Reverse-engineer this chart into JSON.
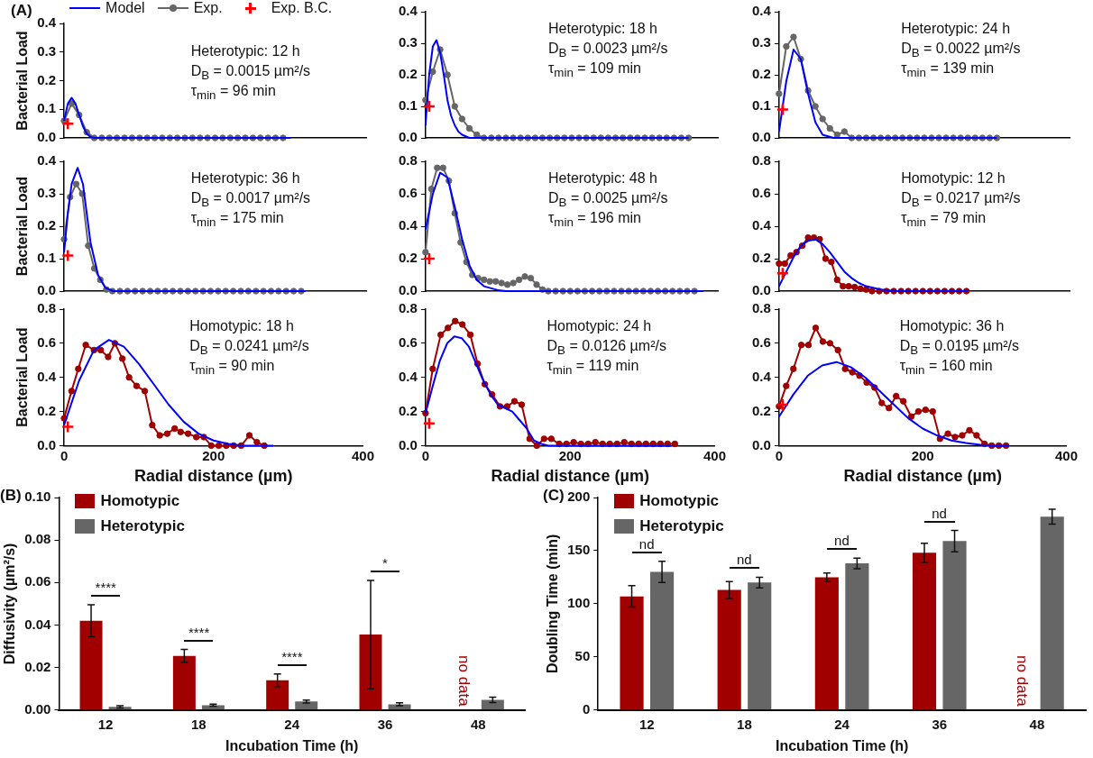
{
  "chart_data": [
    {
      "type": "line",
      "title": "(A)",
      "ylabel": "Bacterial Load",
      "xlim": [
        0,
        400
      ],
      "xticks": [
        0,
        200,
        400
      ],
      "ylim": [
        0,
        0.4
      ],
      "yticks": [
        {
          "value": 0,
          "label": "0.0"
        },
        0.1,
        0.2,
        0.3,
        0.4
      ],
      "tick_labels": "y",
      "legend": "top",
      "annotations": [
        "Heterotypic: 12 h",
        "D$_{B}$ = 0.0015 µm²/s",
        "τ$_{min}$ = 96 min"
      ],
      "series": [
        {
          "name": "Model",
          "color": "#0000ff",
          "marker": "none",
          "x": [
            0,
            5,
            10,
            15,
            20,
            25,
            30,
            35,
            40,
            300
          ],
          "values": [
            0.06,
            0.12,
            0.14,
            0.12,
            0.08,
            0.04,
            0.015,
            0.003,
            0,
            0
          ]
        },
        {
          "name": "Exp.",
          "color": "#666666",
          "marker": "circle",
          "x": [
            0,
            10,
            20,
            30,
            40,
            50,
            60,
            70,
            80,
            90,
            100,
            110,
            120,
            130,
            140,
            150,
            160,
            170,
            180,
            190,
            200,
            210,
            220,
            230,
            240,
            250,
            260,
            270,
            280,
            290
          ],
          "values": [
            0.06,
            0.12,
            0.08,
            0.02,
            0,
            0,
            0,
            0,
            0,
            0,
            0,
            0,
            0,
            0,
            0,
            0,
            0,
            0,
            0,
            0,
            0,
            0,
            0,
            0,
            0,
            0,
            0,
            0,
            0,
            0
          ]
        },
        {
          "name": "Exp. B.C.",
          "type": "scatter",
          "color": "#ff0000",
          "marker": "cross",
          "x": [
            5
          ],
          "values": [
            0.05
          ]
        }
      ]
    },
    {
      "type": "line",
      "xlim": [
        0,
        400
      ],
      "xticks": [
        0,
        200,
        400
      ],
      "ylim": [
        0,
        0.4
      ],
      "yticks": [
        {
          "value": 0,
          "label": "0.0"
        },
        0.1,
        0.2,
        0.3,
        0.4
      ],
      "tick_labels": "y",
      "annotations": [
        "Heterotypic: 18 h",
        "D$_{B}$ = 0.0023 µm²/s",
        "τ$_{min}$ = 109 min"
      ],
      "series": [
        {
          "color": "#0000ff",
          "marker": "none",
          "x": [
            0,
            5,
            10,
            15,
            20,
            25,
            30,
            35,
            40,
            45,
            50,
            60,
            360
          ],
          "values": [
            0.04,
            0.2,
            0.29,
            0.31,
            0.27,
            0.2,
            0.12,
            0.07,
            0.04,
            0.02,
            0.01,
            0,
            0
          ]
        },
        {
          "color": "#666666",
          "marker": "circle",
          "x": [
            0,
            10,
            20,
            30,
            40,
            50,
            60,
            70,
            80,
            90,
            100,
            110,
            120,
            130,
            140,
            150,
            160,
            170,
            180,
            190,
            200,
            210,
            220,
            230,
            240,
            250,
            260,
            270,
            280,
            290,
            300,
            310,
            320,
            330,
            340,
            350,
            360
          ],
          "values": [
            0.12,
            0.21,
            0.28,
            0.2,
            0.1,
            0.06,
            0.03,
            0.01,
            0,
            0,
            0,
            0,
            0,
            0,
            0,
            0,
            0,
            0,
            0,
            0,
            0,
            0,
            0,
            0,
            0,
            0,
            0,
            0,
            0,
            0,
            0,
            0,
            0,
            0,
            0,
            0,
            0
          ]
        },
        {
          "type": "scatter",
          "color": "#ff0000",
          "marker": "cross",
          "x": [
            5
          ],
          "values": [
            0.1
          ]
        }
      ]
    },
    {
      "type": "line",
      "xlim": [
        0,
        400
      ],
      "xticks": [
        0,
        200,
        400
      ],
      "ylim": [
        0,
        0.4
      ],
      "yticks": [
        {
          "value": 0,
          "label": "0.0"
        },
        0.1,
        0.2,
        0.3,
        0.4
      ],
      "tick_labels": "y",
      "annotations": [
        "Heterotypic: 24 h",
        "D$_{B}$ = 0.0022 µm²/s",
        "τ$_{min}$ = 139 min"
      ],
      "series": [
        {
          "color": "#0000ff",
          "marker": "none",
          "x": [
            0,
            10,
            20,
            30,
            40,
            50,
            60,
            75,
            300
          ],
          "values": [
            0.02,
            0.18,
            0.28,
            0.25,
            0.14,
            0.05,
            0.01,
            0,
            0
          ]
        },
        {
          "color": "#666666",
          "marker": "circle",
          "x": [
            0,
            10,
            20,
            30,
            40,
            50,
            60,
            70,
            80,
            90,
            100,
            110,
            120,
            130,
            140,
            150,
            160,
            170,
            180,
            190,
            200,
            210,
            220,
            230,
            240,
            250,
            260,
            270,
            280,
            290,
            300
          ],
          "values": [
            0.14,
            0.29,
            0.32,
            0.25,
            0.15,
            0.1,
            0.06,
            0.03,
            0.01,
            0.02,
            0,
            0,
            0,
            0,
            0,
            0,
            0,
            0,
            0,
            0,
            0,
            0,
            0,
            0,
            0,
            0,
            0,
            0,
            0,
            0,
            0
          ]
        },
        {
          "type": "scatter",
          "color": "#ff0000",
          "marker": "cross",
          "x": [
            5
          ],
          "values": [
            0.09
          ]
        }
      ]
    },
    {
      "type": "line",
      "ylabel": "Bacterial Load",
      "xlim": [
        0,
        400
      ],
      "xticks": [
        0,
        200,
        400
      ],
      "ylim": [
        0,
        0.4
      ],
      "yticks": [
        {
          "value": 0,
          "label": "0.0"
        },
        0.1,
        0.2,
        0.3,
        0.4
      ],
      "tick_labels": "y",
      "annotations": [
        "Heterotypic: 36 h",
        "D$_{B}$ = 0.0017 µm²/s",
        "τ$_{min}$ = 175 min"
      ],
      "series": [
        {
          "color": "#0000ff",
          "marker": "none",
          "x": [
            0,
            5,
            10,
            18,
            25,
            30,
            35,
            45,
            55,
            65,
            320
          ],
          "values": [
            0.12,
            0.24,
            0.33,
            0.38,
            0.33,
            0.24,
            0.15,
            0.05,
            0.01,
            0,
            0
          ]
        },
        {
          "color": "#666666",
          "marker": "circle",
          "x": [
            0,
            8,
            16,
            24,
            32,
            40,
            48,
            56,
            64,
            74,
            84,
            94,
            104,
            114,
            124,
            134,
            144,
            154,
            164,
            174,
            184,
            194,
            204,
            214,
            224,
            234,
            244,
            254,
            264,
            274,
            284,
            294,
            304,
            314
          ],
          "values": [
            0.16,
            0.29,
            0.33,
            0.3,
            0.14,
            0.07,
            0.035,
            0.005,
            0,
            0,
            0,
            0,
            0,
            0,
            0,
            0,
            0,
            0,
            0,
            0,
            0,
            0,
            0,
            0,
            0,
            0,
            0,
            0,
            0,
            0,
            0,
            0,
            0,
            0
          ]
        },
        {
          "type": "scatter",
          "color": "#ff0000",
          "marker": "cross",
          "x": [
            5
          ],
          "values": [
            0.11
          ]
        }
      ]
    },
    {
      "type": "line",
      "xlim": [
        0,
        400
      ],
      "xticks": [
        0,
        200,
        400
      ],
      "ylim": [
        0,
        0.8
      ],
      "yticks": [
        {
          "value": 0,
          "label": "0.0"
        },
        0.2,
        0.4,
        0.6,
        0.8
      ],
      "tick_labels": "y",
      "annotations": [
        "Heterotypic: 48 h",
        "D$_{B}$ = 0.0025 µm²/s",
        "τ$_{min}$ = 196 min"
      ],
      "series": [
        {
          "color": "#0000ff",
          "marker": "none",
          "x": [
            0,
            10,
            20,
            30,
            40,
            50,
            60,
            70,
            80,
            100,
            110,
            380
          ],
          "values": [
            0.38,
            0.6,
            0.73,
            0.7,
            0.52,
            0.32,
            0.16,
            0.07,
            0.03,
            0.005,
            0,
            0
          ]
        },
        {
          "color": "#666666",
          "marker": "circle",
          "x": [
            0,
            8,
            16,
            24,
            32,
            40,
            48,
            56,
            64,
            72,
            80,
            88,
            96,
            104,
            112,
            120,
            128,
            136,
            144,
            152,
            160,
            168,
            178,
            188,
            198,
            208,
            218,
            228,
            238,
            248,
            258,
            268,
            278,
            288,
            298,
            308,
            318,
            328,
            338,
            348,
            358,
            368
          ],
          "values": [
            0.24,
            0.63,
            0.76,
            0.76,
            0.68,
            0.48,
            0.3,
            0.18,
            0.1,
            0.08,
            0.07,
            0.06,
            0.06,
            0.05,
            0.04,
            0.05,
            0.07,
            0.09,
            0.08,
            0.04,
            0.01,
            0,
            0,
            0,
            0,
            0,
            0,
            0,
            0,
            0,
            0,
            0,
            0,
            0,
            0,
            0,
            0,
            0,
            0,
            0,
            0,
            0
          ]
        },
        {
          "type": "scatter",
          "color": "#ff0000",
          "marker": "cross",
          "x": [
            5
          ],
          "values": [
            0.2
          ]
        }
      ]
    },
    {
      "type": "line",
      "xlim": [
        0,
        400
      ],
      "xticks": [
        0,
        200,
        400
      ],
      "ylim": [
        0,
        0.8
      ],
      "yticks": [
        {
          "value": 0,
          "label": "0.0"
        },
        0.2,
        0.4,
        0.6,
        0.8
      ],
      "tick_labels": "y",
      "annotations": [
        "Homotypic: 12 h",
        "D$_{B}$ = 0.0217 µm²/s",
        "τ$_{min}$ = 79 min"
      ],
      "series": [
        {
          "color": "#0000ff",
          "marker": "none",
          "x": [
            0,
            10,
            20,
            30,
            40,
            50,
            60,
            70,
            80,
            90,
            100,
            110,
            120,
            140,
            160,
            260
          ],
          "values": [
            0.03,
            0.12,
            0.21,
            0.28,
            0.31,
            0.32,
            0.29,
            0.24,
            0.18,
            0.12,
            0.08,
            0.05,
            0.03,
            0.01,
            0,
            0
          ]
        },
        {
          "color": "#a00000",
          "marker": "circle",
          "x": [
            0,
            8,
            16,
            24,
            32,
            40,
            48,
            56,
            64,
            72,
            80,
            88,
            96,
            104,
            112,
            120,
            128,
            138,
            148,
            158,
            168,
            178,
            188,
            198,
            208,
            218,
            228,
            238,
            248,
            258
          ],
          "values": [
            0.17,
            0.17,
            0.22,
            0.24,
            0.28,
            0.33,
            0.33,
            0.32,
            0.2,
            0.18,
            0.07,
            0.03,
            0.03,
            0.025,
            0.015,
            0.01,
            0,
            0,
            0,
            0,
            0,
            0,
            0,
            0,
            0,
            0,
            0,
            0,
            0,
            0
          ]
        },
        {
          "type": "scatter",
          "color": "#ff0000",
          "marker": "cross",
          "x": [
            5
          ],
          "values": [
            0.11
          ]
        }
      ]
    },
    {
      "type": "line",
      "ylabel": "Bacterial Load",
      "xlabel": "Radial distance (µm)",
      "xlim": [
        0,
        400
      ],
      "xticks": [
        0,
        200,
        400
      ],
      "ylim": [
        0,
        0.8
      ],
      "yticks": [
        {
          "value": 0,
          "label": "0.0"
        },
        0.2,
        0.4,
        0.6,
        0.8
      ],
      "annotations": [
        "Homotypic: 18 h",
        "D$_{B}$ = 0.0241 µm²/s",
        "τ$_{min}$ = 90 min"
      ],
      "series": [
        {
          "color": "#0000ff",
          "marker": "none",
          "x": [
            0,
            20,
            40,
            60,
            80,
            100,
            120,
            140,
            160,
            180,
            200,
            220,
            240,
            280
          ],
          "values": [
            0.12,
            0.38,
            0.56,
            0.62,
            0.58,
            0.48,
            0.36,
            0.24,
            0.14,
            0.07,
            0.03,
            0.01,
            0,
            0
          ]
        },
        {
          "color": "#a00000",
          "marker": "circle",
          "x": [
            0,
            10,
            19,
            29,
            40,
            49,
            59,
            68,
            78,
            87,
            97,
            108,
            118,
            128,
            138,
            148,
            156,
            166,
            177,
            187,
            197,
            207,
            217,
            227,
            237,
            248,
            258,
            268
          ],
          "values": [
            0.16,
            0.32,
            0.45,
            0.59,
            0.56,
            0.56,
            0.52,
            0.6,
            0.51,
            0.4,
            0.35,
            0.32,
            0.12,
            0.06,
            0.07,
            0.1,
            0.08,
            0.07,
            0.05,
            0.05,
            0,
            0,
            0,
            0,
            0,
            0.06,
            0.02,
            0
          ]
        },
        {
          "type": "scatter",
          "color": "#ff0000",
          "marker": "cross",
          "x": [
            5
          ],
          "values": [
            0.11
          ]
        }
      ]
    },
    {
      "type": "line",
      "xlabel": "Radial distance (µm)",
      "xlim": [
        0,
        400
      ],
      "xticks": [
        0,
        200,
        400
      ],
      "ylim": [
        0,
        0.8
      ],
      "yticks": [
        {
          "value": 0,
          "label": "0.0"
        },
        0.2,
        0.4,
        0.6,
        0.8
      ],
      "annotations": [
        "Homotypic: 24 h",
        "D$_{B}$ = 0.0126 µm²/s",
        "τ$_{min}$ = 119 min"
      ],
      "series": [
        {
          "color": "#0000ff",
          "marker": "none",
          "x": [
            0,
            10,
            20,
            30,
            40,
            50,
            60,
            70,
            80,
            90,
            100,
            110,
            120,
            130,
            140,
            150,
            160,
            170,
            340
          ],
          "values": [
            0.19,
            0.35,
            0.5,
            0.6,
            0.64,
            0.63,
            0.58,
            0.48,
            0.38,
            0.3,
            0.24,
            0.22,
            0.2,
            0.15,
            0.1,
            0.03,
            0.01,
            0,
            0
          ]
        },
        {
          "color": "#a00000",
          "marker": "circle",
          "x": [
            0,
            10,
            21,
            31,
            41,
            51,
            62,
            72,
            82,
            92,
            103,
            113,
            123,
            133,
            144,
            154,
            164,
            174,
            185,
            195,
            205,
            215,
            225,
            235,
            245,
            255,
            265,
            275,
            285,
            295,
            305,
            315,
            325,
            335,
            345
          ],
          "values": [
            0.19,
            0.45,
            0.65,
            0.69,
            0.73,
            0.71,
            0.65,
            0.48,
            0.36,
            0.3,
            0.23,
            0.23,
            0.26,
            0.24,
            0.04,
            0,
            0.04,
            0.04,
            0.01,
            0.01,
            0.02,
            0.01,
            0.01,
            0.02,
            0.01,
            0.01,
            0.01,
            0.02,
            0.01,
            0.01,
            0.01,
            0.01,
            0.01,
            0.01,
            0.01
          ]
        },
        {
          "type": "scatter",
          "color": "#ff0000",
          "marker": "cross",
          "x": [
            5
          ],
          "values": [
            0.13
          ]
        }
      ]
    },
    {
      "type": "line",
      "xlabel": "Radial distance (µm)",
      "xlim": [
        0,
        400
      ],
      "xticks": [
        0,
        200,
        400
      ],
      "ylim": [
        0,
        0.8
      ],
      "yticks": [
        {
          "value": 0,
          "label": "0.0"
        },
        0.2,
        0.4,
        0.6,
        0.8
      ],
      "annotations": [
        "Homotypic: 36 h",
        "D$_{B}$ = 0.0195 µm²/s",
        "τ$_{min}$ = 160 min"
      ],
      "series": [
        {
          "color": "#0000ff",
          "marker": "none",
          "x": [
            0,
            20,
            40,
            60,
            80,
            100,
            120,
            140,
            160,
            180,
            200,
            220,
            240,
            260,
            280,
            300,
            320
          ],
          "values": [
            0.17,
            0.3,
            0.41,
            0.47,
            0.49,
            0.46,
            0.4,
            0.32,
            0.24,
            0.16,
            0.1,
            0.06,
            0.03,
            0.015,
            0.005,
            0,
            0
          ]
        },
        {
          "color": "#a00000",
          "marker": "circle",
          "x": [
            0,
            10,
            20,
            31,
            41,
            51,
            61,
            71,
            82,
            92,
            102,
            112,
            122,
            133,
            143,
            153,
            163,
            173,
            184,
            194,
            204,
            214,
            224,
            235,
            245,
            255,
            265,
            275,
            286,
            296,
            306,
            316
          ],
          "values": [
            0.23,
            0.35,
            0.45,
            0.59,
            0.59,
            0.69,
            0.61,
            0.6,
            0.56,
            0.45,
            0.43,
            0.41,
            0.37,
            0.34,
            0.25,
            0.22,
            0.29,
            0.26,
            0.17,
            0.2,
            0.21,
            0.2,
            0.04,
            0.07,
            0.05,
            0.06,
            0.09,
            0.06,
            0.01,
            0,
            0,
            0
          ]
        },
        {
          "type": "scatter",
          "color": "#ff0000",
          "marker": "cross",
          "x": [
            5
          ],
          "values": [
            0.24
          ]
        }
      ]
    },
    {
      "type": "bar",
      "title": "(B)",
      "xlabel": "Incubation Time (h)",
      "ylabel": "Diffusivity (µm²/s)",
      "categories": [
        "12",
        "18",
        "24",
        "36",
        "48"
      ],
      "ylim": [
        0,
        0.1
      ],
      "yticks": [
        {
          "value": 0,
          "label": "0.00"
        },
        {
          "value": 0.02,
          "label": "0.02"
        },
        {
          "value": 0.04,
          "label": "0.04"
        },
        {
          "value": 0.06,
          "label": "0.06"
        },
        {
          "value": 0.08,
          "label": "0.08"
        },
        {
          "value": 0.1,
          "label": "0.10"
        }
      ],
      "legend": "top left",
      "annotations": [
        "****",
        "****",
        "****",
        "*",
        "no data"
      ],
      "series": [
        {
          "name": "Homotypic",
          "color": "#a00000",
          "values": [
            0.042,
            0.0255,
            0.014,
            0.0355,
            null
          ],
          "errors": [
            0.0075,
            0.003,
            0.003,
            0.0255,
            null
          ]
        },
        {
          "name": "Heterotypic",
          "color": "#666666",
          "values": [
            0.0015,
            0.0023,
            0.004,
            0.0027,
            0.0048
          ],
          "errors": [
            0.0005,
            0.0005,
            0.0007,
            0.0007,
            0.0013
          ]
        }
      ]
    },
    {
      "type": "bar",
      "title": "(C)",
      "xlabel": "Incubation Time (h)",
      "ylabel": "Doubling Time (min)",
      "categories": [
        "12",
        "18",
        "24",
        "36",
        "48"
      ],
      "ylim": [
        0,
        200
      ],
      "yticks": [
        0,
        50,
        100,
        150,
        200
      ],
      "legend": "top left",
      "annotations": [
        "nd",
        "nd",
        "nd",
        "nd",
        "no data"
      ],
      "series": [
        {
          "name": "Homotypic",
          "color": "#a00000",
          "values": [
            107,
            113,
            125,
            148,
            null
          ],
          "errors": [
            10,
            8,
            4,
            9,
            null
          ]
        },
        {
          "name": "Heterotypic",
          "color": "#666666",
          "values": [
            130,
            120,
            138,
            159,
            182
          ],
          "errors": [
            10,
            5,
            5,
            10,
            7
          ]
        }
      ]
    }
  ]
}
